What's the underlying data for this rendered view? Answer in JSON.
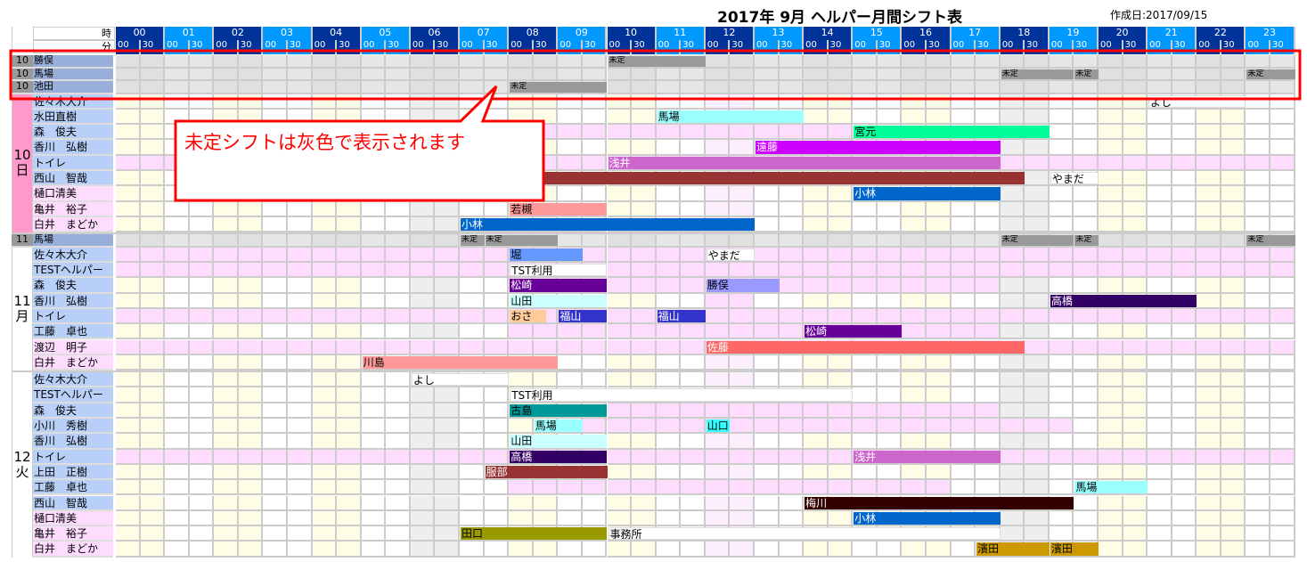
{
  "title": "2017年 9月 ヘルパー月間シフト表",
  "created_date": "作成日:2017/09/15",
  "header": {
    "hour_label": "時",
    "minute_label": "分",
    "hours": [
      "00",
      "01",
      "02",
      "03",
      "04",
      "05",
      "06",
      "07",
      "08",
      "09",
      "10",
      "11",
      "12",
      "13",
      "14",
      "15",
      "16",
      "17",
      "18",
      "19",
      "20",
      "21",
      "22",
      "23"
    ],
    "minutes": [
      "00",
      "30"
    ]
  },
  "callout": {
    "text": "未定シフトは灰色で表示されます",
    "color": "#ff0000"
  },
  "colors": {
    "hour_dark": "#003399",
    "hour_light": "#0099ff",
    "name_blue": "#b8cff8",
    "name_pink": "#fddcfd",
    "row_pink": "#fddcfd",
    "pending_bg": "#e4e4e4",
    "pending_bar": "#999999",
    "col_yellow": "#fffde6",
    "col_white": "#ffffff",
    "col_gray": "#eeeeee",
    "col_pink": "#fdeefd",
    "day_10": "#ff99cc"
  },
  "column_pattern": [
    "Y",
    "W",
    "Y",
    "W",
    "Y",
    "W",
    "G",
    "W",
    "Y",
    "W",
    "Y",
    "W",
    "P",
    "W",
    "Y",
    "W",
    "Y",
    "W",
    "G",
    "W",
    "Y",
    "W",
    "Y",
    "W"
  ],
  "groups": [
    {
      "day_number": "10",
      "day_suffix": "日",
      "day_color": "#ff99cc",
      "pending": [
        {
          "num": "10",
          "name": "勝俣",
          "shifts": [
            {
              "start": 10,
              "end": 12,
              "label": "未定"
            }
          ]
        },
        {
          "num": "10",
          "name": "馬場",
          "shifts": [
            {
              "start": 18,
              "end": 19.5,
              "label": "未定"
            },
            {
              "start": 19.5,
              "end": 20,
              "label": "未定"
            },
            {
              "start": 23,
              "end": 24,
              "label": "未定"
            }
          ]
        },
        {
          "num": "10",
          "name": "池田",
          "shifts": [
            {
              "start": 8,
              "end": 10,
              "label": "未定"
            }
          ]
        }
      ],
      "rows": [
        {
          "name": "佐々木大介",
          "name_pink": false,
          "pink": [],
          "shifts": [
            {
              "start": 21,
              "end": 23,
              "label": "よし",
              "color": "#ffffff",
              "text": "#000000"
            }
          ]
        },
        {
          "name": "水田直樹",
          "name_pink": false,
          "pink": [],
          "shifts": [
            {
              "start": 11,
              "end": 14,
              "label": "馬場",
              "color": "#99ffff",
              "text": "#000000"
            }
          ]
        },
        {
          "name": "森　俊夫",
          "name_pink": false,
          "pink": [
            [
              6,
              15
            ]
          ],
          "shifts": [
            {
              "start": 15,
              "end": 19,
              "label": "宮元",
              "color": "#00ff99",
              "text": "#000000"
            }
          ]
        },
        {
          "name": "香川　弘樹",
          "name_pink": false,
          "pink": [],
          "shifts": [
            {
              "start": 13,
              "end": 18,
              "label": "遠藤",
              "color": "#cc00ff",
              "text": "#ffffff"
            }
          ]
        },
        {
          "name": "トイレ",
          "name_pink": false,
          "pink": [
            [
              0,
              24
            ]
          ],
          "shifts": [
            {
              "start": 10,
              "end": 18,
              "label": "浅井",
              "color": "#cc66cc",
              "text": "#ffffff"
            }
          ]
        },
        {
          "name": "西山　智哉",
          "name_pink": false,
          "pink": [],
          "shifts": [
            {
              "start": 8,
              "end": 18.5,
              "label": "",
              "color": "#993333",
              "text": "#ffffff"
            },
            {
              "start": 19,
              "end": 20,
              "label": "やまだ",
              "color": "#ffffff",
              "text": "#000000"
            }
          ]
        },
        {
          "name": "樋口清美",
          "name_pink": true,
          "pink": [],
          "shifts": [
            {
              "start": 15,
              "end": 18,
              "label": "小林",
              "color": "#0066cc",
              "text": "#ffffff"
            }
          ]
        },
        {
          "name": "亀井　裕子",
          "name_pink": true,
          "pink": [],
          "shifts": [
            {
              "start": 8,
              "end": 10,
              "label": "若槻",
              "color": "#ff9999",
              "text": "#000000"
            }
          ]
        },
        {
          "name": "白井　まどか",
          "name_pink": true,
          "pink": [],
          "shifts": [
            {
              "start": 7,
              "end": 13,
              "label": "小林",
              "color": "#0066cc",
              "text": "#ffffff"
            }
          ]
        }
      ]
    },
    {
      "day_number": "11",
      "day_suffix": "月",
      "day_color": "#ffffff",
      "pending": [
        {
          "num": "11",
          "name": "馬場",
          "shifts": [
            {
              "start": 7,
              "end": 7.5,
              "label": "未定"
            },
            {
              "start": 7.5,
              "end": 9,
              "label": "未定"
            },
            {
              "start": 18,
              "end": 19.5,
              "label": "未定"
            },
            {
              "start": 19.5,
              "end": 20,
              "label": "未定"
            },
            {
              "start": 23,
              "end": 24,
              "label": "未定"
            }
          ]
        }
      ],
      "rows": [
        {
          "name": "佐々木大介",
          "name_pink": false,
          "pink": [
            [
              0,
              24
            ]
          ],
          "shifts": [
            {
              "start": 8,
              "end": 9.5,
              "label": "堀",
              "color": "#6699ff",
              "text": "#000000"
            },
            {
              "start": 12,
              "end": 13,
              "label": "やまだ",
              "color": "#ffffff",
              "text": "#000000"
            }
          ]
        },
        {
          "name": "TESTヘルパー",
          "name_pink": false,
          "pink": [
            [
              0,
              24
            ]
          ],
          "shifts": [
            {
              "start": 8,
              "end": 10,
              "label": "TST利用",
              "color": "#ffffff",
              "text": "#000000"
            }
          ]
        },
        {
          "name": "森　俊夫",
          "name_pink": false,
          "pink": [
            [
              8,
              18
            ]
          ],
          "shifts": [
            {
              "start": 8,
              "end": 10,
              "label": "松崎",
              "color": "#660099",
              "text": "#ffffff"
            },
            {
              "start": 12,
              "end": 13.5,
              "label": "勝俣",
              "color": "#9999ff",
              "text": "#000000"
            }
          ]
        },
        {
          "name": "香川　弘樹",
          "name_pink": false,
          "pink": [
            [
              12,
              13
            ]
          ],
          "shifts": [
            {
              "start": 8,
              "end": 10,
              "label": "山田",
              "color": "#ccffff",
              "text": "#000000"
            },
            {
              "start": 19,
              "end": 22,
              "label": "高橋",
              "color": "#330066",
              "text": "#ffffff"
            }
          ]
        },
        {
          "name": "トイレ",
          "name_pink": false,
          "pink": [
            [
              0,
              24
            ]
          ],
          "shifts": [
            {
              "start": 8,
              "end": 8.75,
              "label": "おさ",
              "color": "#ffcc99",
              "text": "#000000"
            },
            {
              "start": 9,
              "end": 10,
              "label": "福山",
              "color": "#3333cc",
              "text": "#ffffff"
            },
            {
              "start": 11,
              "end": 12,
              "label": "福山",
              "color": "#3333cc",
              "text": "#ffffff"
            }
          ]
        },
        {
          "name": "工藤　卓也",
          "name_pink": false,
          "pink": [
            [
              8,
              18
            ]
          ],
          "shifts": [
            {
              "start": 14,
              "end": 16,
              "label": "松崎",
              "color": "#660099",
              "text": "#ffffff"
            }
          ]
        },
        {
          "name": "渡辺　明子",
          "name_pink": true,
          "pink": [
            [
              0,
              24
            ]
          ],
          "shifts": [
            {
              "start": 12,
              "end": 18.5,
              "label": "佐藤",
              "color": "#ff6666",
              "text": "#ffffff"
            }
          ]
        },
        {
          "name": "白井　まどか",
          "name_pink": true,
          "pink": [],
          "shifts": [
            {
              "start": 5,
              "end": 9,
              "label": "川島",
              "color": "#ff9999",
              "text": "#000000"
            }
          ]
        }
      ]
    },
    {
      "day_number": "12",
      "day_suffix": "火",
      "day_color": "#ffffff",
      "pending": [],
      "rows": [
        {
          "name": "佐々木大介",
          "name_pink": false,
          "pink": [],
          "shifts": [
            {
              "start": 6,
              "end": 8,
              "label": "よし",
              "color": "#ffffff",
              "text": "#000000"
            }
          ]
        },
        {
          "name": "TESTヘルパー",
          "name_pink": false,
          "pink": [],
          "shifts": [
            {
              "start": 8,
              "end": 15,
              "label": "TST利用",
              "color": "#ffffff",
              "text": "#000000"
            }
          ]
        },
        {
          "name": "森　俊夫",
          "name_pink": false,
          "pink": [
            [
              10,
              18
            ]
          ],
          "shifts": [
            {
              "start": 8,
              "end": 10,
              "label": "古島",
              "color": "#009999",
              "text": "#000000"
            }
          ]
        },
        {
          "name": "小川　秀樹",
          "name_pink": false,
          "pink": [
            [
              9.5,
              19.5
            ]
          ],
          "shifts": [
            {
              "start": 8.5,
              "end": 9.5,
              "label": "馬場",
              "color": "#99ffff",
              "text": "#000000"
            },
            {
              "start": 12,
              "end": 12.5,
              "label": "山口",
              "color": "#33ffff",
              "text": "#000000"
            }
          ]
        },
        {
          "name": "香川　弘樹",
          "name_pink": false,
          "pink": [],
          "shifts": [
            {
              "start": 8,
              "end": 10,
              "label": "山田",
              "color": "#ccffff",
              "text": "#000000"
            }
          ]
        },
        {
          "name": "トイレ",
          "name_pink": false,
          "pink": [
            [
              0,
              24
            ]
          ],
          "shifts": [
            {
              "start": 8,
              "end": 10,
              "label": "高橋",
              "color": "#330066",
              "text": "#ffffff"
            },
            {
              "start": 15,
              "end": 18,
              "label": "浅井",
              "color": "#cc66cc",
              "text": "#ffffff"
            }
          ]
        },
        {
          "name": "上田　正樹",
          "name_pink": false,
          "pink": [],
          "shifts": [
            {
              "start": 7.5,
              "end": 10,
              "label": "服部",
              "color": "#993333",
              "text": "#ffffff"
            }
          ]
        },
        {
          "name": "工藤　卓也",
          "name_pink": false,
          "pink": [
            [
              8,
              17
            ]
          ],
          "shifts": [
            {
              "start": 19.5,
              "end": 21,
              "label": "馬場",
              "color": "#99ffff",
              "text": "#000000"
            }
          ]
        },
        {
          "name": "西山　智哉",
          "name_pink": false,
          "pink": [],
          "shifts": [
            {
              "start": 14,
              "end": 19.5,
              "label": "梅川",
              "color": "#330000",
              "text": "#ffffff"
            }
          ]
        },
        {
          "name": "樋口清美",
          "name_pink": true,
          "pink": [],
          "shifts": [
            {
              "start": 15,
              "end": 18,
              "label": "小林",
              "color": "#0066cc",
              "text": "#ffffff"
            }
          ]
        },
        {
          "name": "亀井　裕子",
          "name_pink": true,
          "pink": [],
          "shifts": [
            {
              "start": 7,
              "end": 10,
              "label": "田口",
              "color": "#999900",
              "text": "#000000"
            },
            {
              "start": 10,
              "end": 18,
              "label": "事務所",
              "color": "#ffffff",
              "text": "#000000"
            }
          ]
        },
        {
          "name": "白井　まどか",
          "name_pink": true,
          "pink": [],
          "shifts": [
            {
              "start": 17.5,
              "end": 19,
              "label": "濱田",
              "color": "#cc9900",
              "text": "#000000"
            },
            {
              "start": 19,
              "end": 20,
              "label": "濱田",
              "color": "#cc9900",
              "text": "#000000"
            }
          ]
        }
      ]
    }
  ]
}
